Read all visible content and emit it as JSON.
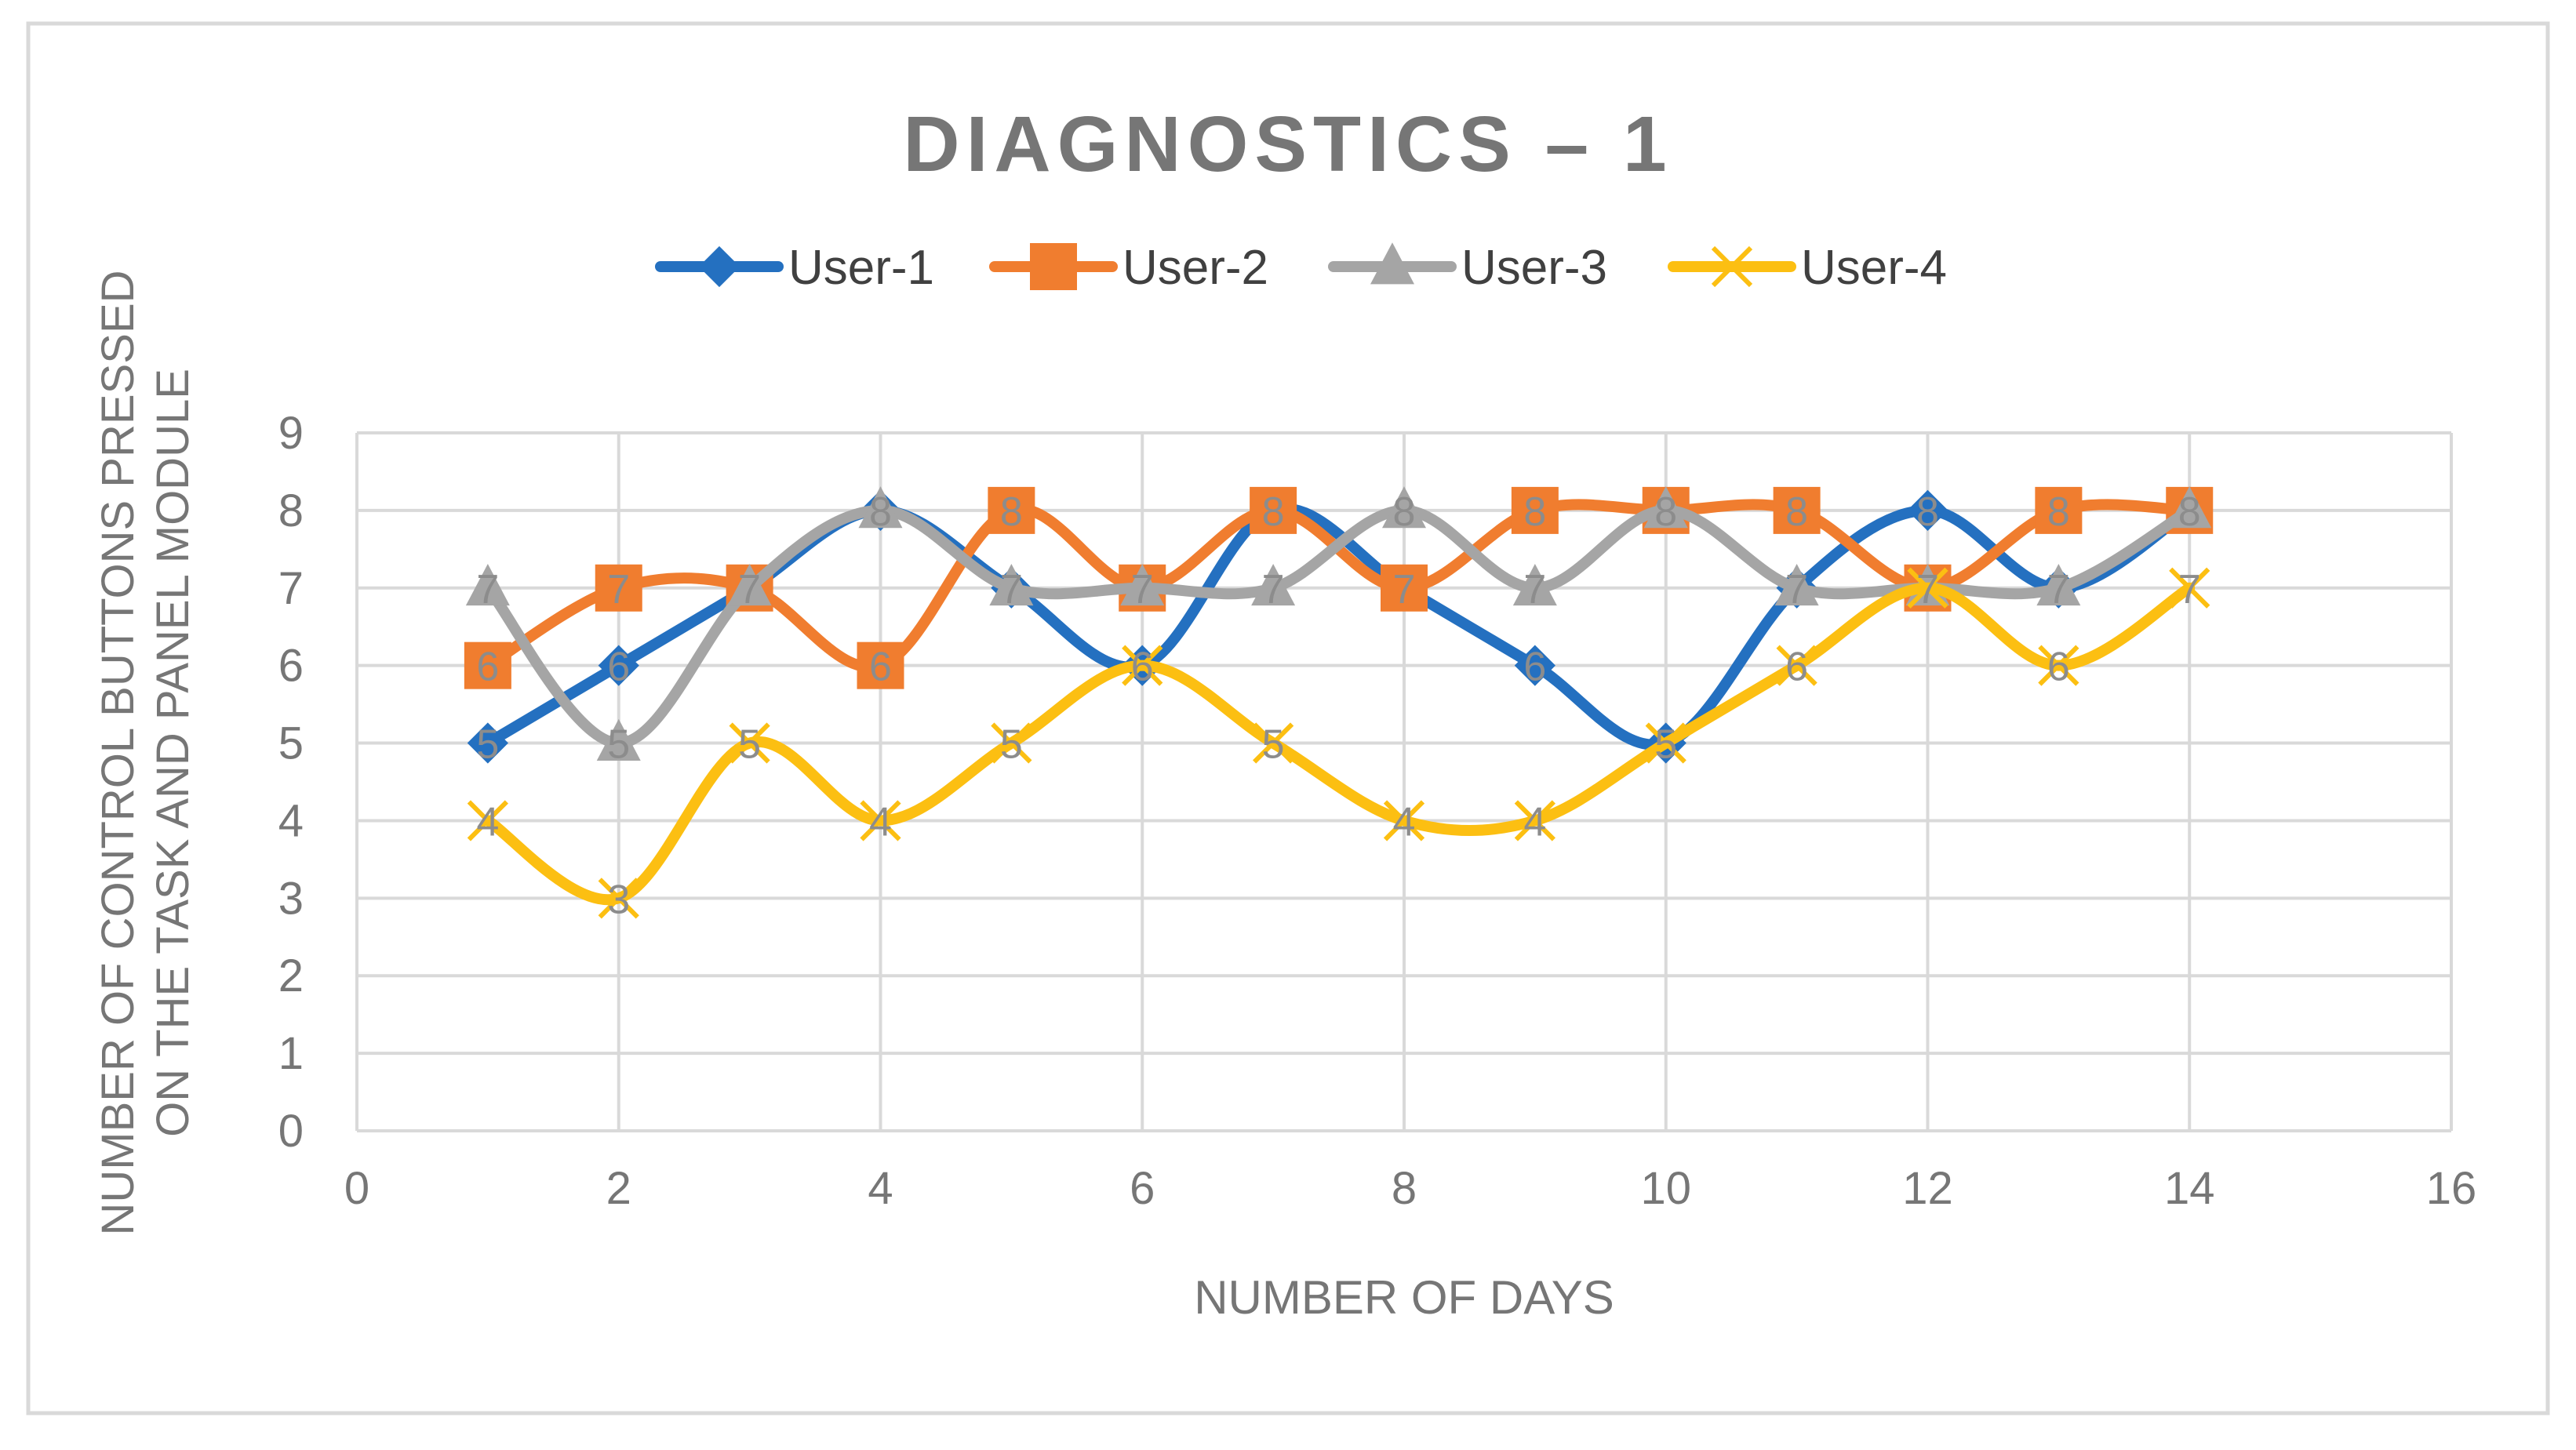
{
  "chart_data": {
    "type": "line",
    "title": "DIAGNOSTICS – 1",
    "xlabel": "NUMBER OF DAYS",
    "ylabel_lines": [
      "NUMBER OF CONTROL BUTTONS PRESSED",
      "ON THE TASK AND PANEL MODULE"
    ],
    "xlim": [
      0,
      16
    ],
    "ylim": [
      0,
      9
    ],
    "xticks": [
      0,
      2,
      4,
      6,
      8,
      10,
      12,
      14,
      16
    ],
    "yticks": [
      0,
      1,
      2,
      3,
      4,
      5,
      6,
      7,
      8,
      9
    ],
    "grid": true,
    "legend_position": "top",
    "smooth": true,
    "data_labels": true,
    "x": [
      1,
      2,
      3,
      4,
      5,
      6,
      7,
      8,
      9,
      10,
      11,
      12,
      13,
      14
    ],
    "series": [
      {
        "name": "User-1",
        "color": "#2470c0",
        "marker": "diamond",
        "values": [
          5,
          6,
          7,
          8,
          7,
          6,
          8,
          7,
          6,
          5,
          7,
          8,
          7,
          8
        ]
      },
      {
        "name": "User-2",
        "color": "#f07d2f",
        "marker": "square",
        "values": [
          6,
          7,
          7,
          6,
          8,
          7,
          8,
          7,
          8,
          8,
          8,
          7,
          8,
          8
        ]
      },
      {
        "name": "User-3",
        "color": "#a5a5a5",
        "marker": "triangle",
        "values": [
          7,
          5,
          7,
          8,
          7,
          7,
          7,
          8,
          7,
          8,
          7,
          7,
          7,
          8
        ]
      },
      {
        "name": "User-4",
        "color": "#fcbf12",
        "marker": "x",
        "values": [
          4,
          3,
          5,
          4,
          5,
          6,
          5,
          4,
          4,
          5,
          6,
          7,
          6,
          7
        ]
      }
    ]
  }
}
